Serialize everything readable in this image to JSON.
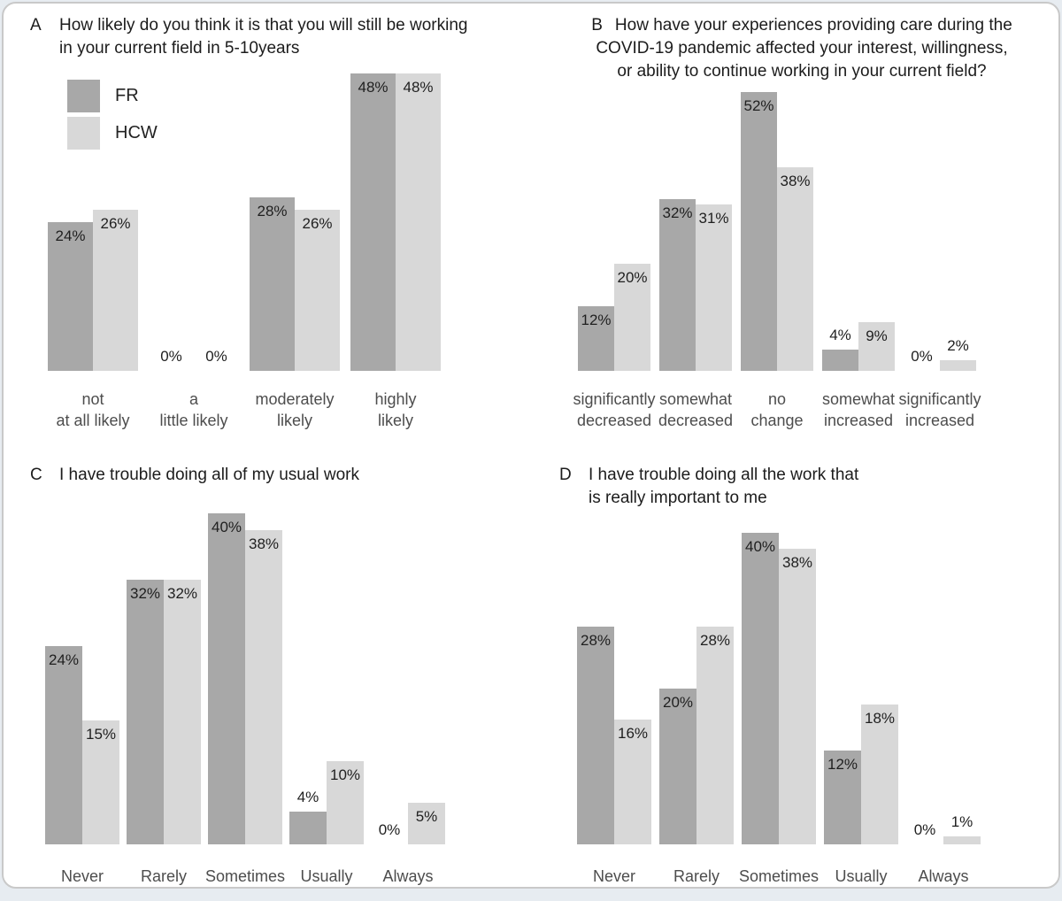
{
  "figure": {
    "unit": "%",
    "colors": {
      "fr_bar": "#a8a8a8",
      "hcw_bar": "#d8d8d8",
      "value_label": "#1f1f1f",
      "category_label": "#4d4d4d",
      "card_border": "#c9c9c9",
      "card_bg": "#ffffff",
      "page_bg": "#e7ecf1"
    }
  },
  "legend": {
    "items": [
      {
        "label": "FR",
        "color": "#a8a8a8"
      },
      {
        "label": "HCW",
        "color": "#d8d8d8"
      }
    ]
  },
  "chart_data": [
    {
      "id": "A",
      "type": "bar",
      "title_letter": "A",
      "title_lines": [
        "How likely do you think it is that you will still be working",
        "in your current field in 5-10years"
      ],
      "categories": [
        [
          "not",
          "at all likely"
        ],
        [
          "a",
          "little likely"
        ],
        [
          "moderately",
          "likely"
        ],
        [
          "highly",
          "likely"
        ]
      ],
      "series": [
        {
          "name": "FR",
          "values": [
            24,
            0,
            28,
            48
          ]
        },
        {
          "name": "HCW",
          "values": [
            26,
            0,
            26,
            48
          ]
        }
      ],
      "unit": "%",
      "ylim": [
        0,
        50
      ],
      "grid": false,
      "legend_position": "upper-left-inside",
      "axis_lines": "none"
    },
    {
      "id": "B",
      "type": "bar",
      "title_letter": "B",
      "title_lines": [
        "How have your experiences providing care during the",
        "COVID-19 pandemic affected your interest, willingness,",
        "or ability to continue working in your current field?"
      ],
      "categories": [
        [
          "significantly",
          "decreased"
        ],
        [
          "somewhat",
          "decreased"
        ],
        [
          "no",
          "change"
        ],
        [
          "somewhat",
          "increased"
        ],
        [
          "significantly",
          "increased"
        ]
      ],
      "series": [
        {
          "name": "FR",
          "values": [
            12,
            32,
            52,
            4,
            0
          ]
        },
        {
          "name": "HCW",
          "values": [
            20,
            31,
            38,
            9,
            2
          ]
        }
      ],
      "unit": "%",
      "ylim": [
        0,
        55
      ],
      "grid": false,
      "legend_position": "none",
      "axis_lines": "none"
    },
    {
      "id": "C",
      "type": "bar",
      "title_letter": "C",
      "title_lines": [
        "I have trouble doing all of my usual work"
      ],
      "categories": [
        [
          "Never"
        ],
        [
          "Rarely"
        ],
        [
          "Sometimes"
        ],
        [
          "Usually"
        ],
        [
          "Always"
        ]
      ],
      "series": [
        {
          "name": "FR",
          "values": [
            24,
            32,
            40,
            4,
            0
          ]
        },
        {
          "name": "HCW",
          "values": [
            15,
            32,
            38,
            10,
            5
          ]
        }
      ],
      "unit": "%",
      "ylim": [
        0,
        42
      ],
      "grid": false,
      "legend_position": "none",
      "axis_lines": "none"
    },
    {
      "id": "D",
      "type": "bar",
      "title_letter": "D",
      "title_lines": [
        "I have trouble doing all the work that",
        "is really important to me"
      ],
      "categories": [
        [
          "Never"
        ],
        [
          "Rarely"
        ],
        [
          "Sometimes"
        ],
        [
          "Usually"
        ],
        [
          "Always"
        ]
      ],
      "series": [
        {
          "name": "FR",
          "values": [
            28,
            20,
            40,
            12,
            0
          ]
        },
        {
          "name": "HCW",
          "values": [
            16,
            28,
            38,
            18,
            1
          ]
        }
      ],
      "unit": "%",
      "ylim": [
        0,
        42
      ],
      "grid": false,
      "legend_position": "none",
      "axis_lines": "none"
    }
  ]
}
